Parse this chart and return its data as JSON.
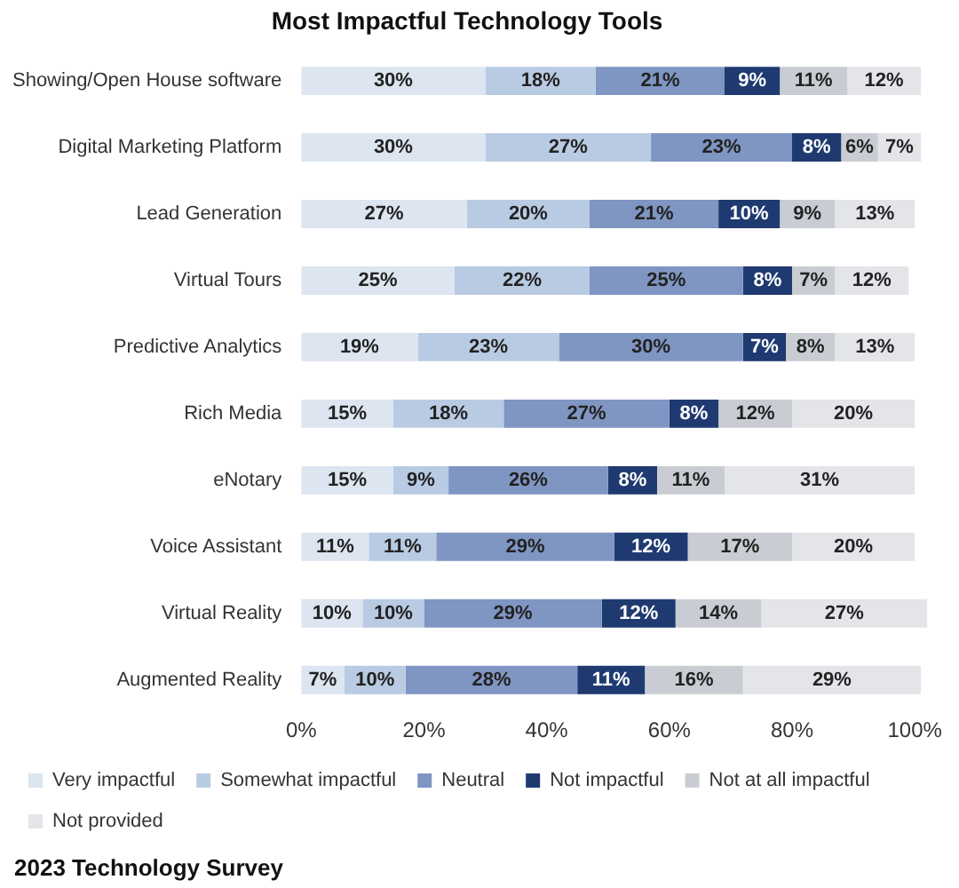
{
  "chart_data": {
    "type": "bar",
    "orientation": "horizontal",
    "stacked": true,
    "title": "Most Impactful Technology Tools",
    "categories": [
      "Showing/Open House software",
      "Digital Marketing Platform",
      "Lead Generation",
      "Virtual Tours",
      "Predictive Analytics",
      "Rich Media",
      "eNotary",
      "Voice Assistant",
      "Virtual Reality",
      "Augmented Reality"
    ],
    "series": [
      {
        "name": "Very impactful",
        "color": "#dce5f0",
        "values": [
          30,
          30,
          27,
          25,
          19,
          15,
          15,
          11,
          10,
          7
        ],
        "value_labels": [
          "30%",
          "30%",
          "27%",
          "25%",
          "19%",
          "15%",
          "15%",
          "11%",
          "10%",
          "7%"
        ]
      },
      {
        "name": "Somewhat impactful",
        "color": "#b9cbe3",
        "values": [
          18,
          27,
          20,
          22,
          23,
          18,
          9,
          11,
          10,
          10
        ],
        "value_labels": [
          "18%",
          "27%",
          "20%",
          "22%",
          "23%",
          "18%",
          "9%",
          "11%",
          "10%",
          "10%"
        ]
      },
      {
        "name": "Neutral",
        "color": "#7f95c2",
        "values": [
          21,
          23,
          21,
          25,
          30,
          27,
          26,
          29,
          29,
          28
        ],
        "value_labels": [
          "21%",
          "23%",
          "21%",
          "25%",
          "30%",
          "27%",
          "26%",
          "29%",
          "29%",
          "28%"
        ]
      },
      {
        "name": "Not impactful",
        "color": "#1f3a70",
        "values": [
          9,
          8,
          10,
          8,
          7,
          8,
          8,
          12,
          12,
          11
        ],
        "value_labels": [
          "9%",
          "8%",
          "10%",
          "8%",
          "7%",
          "8%",
          "8%",
          "12%",
          "12%",
          "11%"
        ]
      },
      {
        "name": "Not at all impactful",
        "color": "#c9cdd3",
        "values": [
          11,
          6,
          9,
          7,
          8,
          12,
          11,
          17,
          14,
          16
        ],
        "value_labels": [
          "11%",
          "6%",
          "9%",
          "7%",
          "8%",
          "12%",
          "11%",
          "17%",
          "14%",
          "16%"
        ]
      },
      {
        "name": "Not provided",
        "color": "#e3e5e9",
        "values": [
          12,
          7,
          13,
          12,
          13,
          20,
          31,
          20,
          27,
          29
        ],
        "value_labels": [
          "12%",
          "7%",
          "13%",
          "12%",
          "13%",
          "20%",
          "31%",
          "20%",
          "27%",
          "29%"
        ]
      }
    ],
    "xlim": [
      0,
      102
    ],
    "xticks": [
      {
        "value": 0,
        "label": "0%"
      },
      {
        "value": 20,
        "label": "20%"
      },
      {
        "value": 40,
        "label": "40%"
      },
      {
        "value": 60,
        "label": "60%"
      },
      {
        "value": 80,
        "label": "80%"
      },
      {
        "value": 100,
        "label": "100%"
      }
    ],
    "grid": false,
    "legend": "bottom",
    "annotations": [
      "2023 Technology Survey"
    ]
  }
}
